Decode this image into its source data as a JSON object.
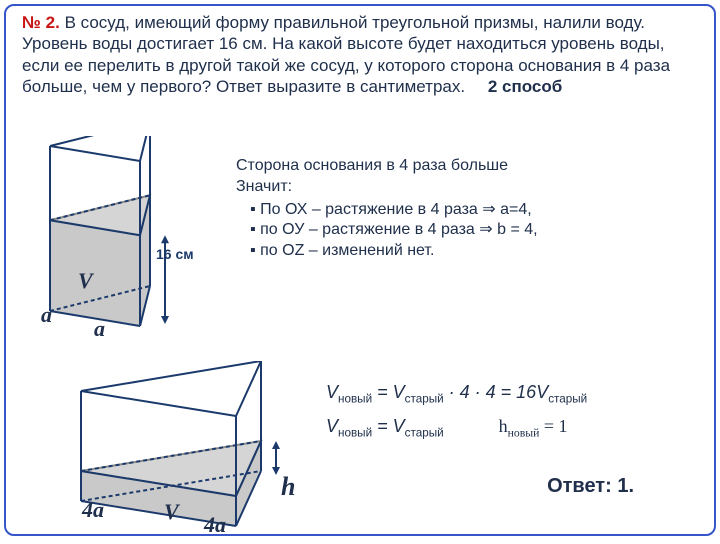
{
  "border_color": "#3555c8",
  "problem": {
    "num_color": "#c81414",
    "num": "№ 2.",
    "text": " В сосуд, имеющий форму правильной треугольной призмы, налили воду. Уровень воды достигает 16 см. На какой высоте будет находиться уровень воды, если ее перелить в другой такой же сосуд, у которого сторона основания в 4 раза больше, чем у первого? Ответ выразите в сантиметрах.",
    "method": "2 способ"
  },
  "reason": {
    "line1": "Сторона основания в 4 раза больше",
    "line2": "Значит:",
    "b1": "По ОХ – растяжение в 4 раза ⇒ a=4,",
    "b2": "по ОУ – растяжение в 4 раза ⇒ b = 4,",
    "b3": "по OZ – изменений нет."
  },
  "calc": {
    "row1_a": "V",
    "row1_sub1": "новый",
    "row1_b": " = V",
    "row1_sub2": "старый",
    "row1_c": " · 4 · 4 = 16V",
    "row1_sub3": "старый",
    "row2_a": "V",
    "row2_sub1": "новый",
    "row2_b": " = V",
    "row2_sub2": "старый",
    "h_label": "h",
    "h_sub": "новый",
    "h_eq": " = 1"
  },
  "answer": "Ответ: 1.",
  "dim16": "16 см",
  "labels": {
    "V1": "V",
    "a1": "a",
    "a2": "a",
    "V2": "V",
    "fa1": "4a",
    "fa2": "4a",
    "h": "h"
  },
  "prism": {
    "outline": "#1b3a6b",
    "outline_w": 2,
    "water_fill": "#c9c9c9",
    "dash": "4 3",
    "arrow": "#1b3a6b",
    "label_color": "#1b3a6b",
    "water_pct_small": 0.55
  }
}
